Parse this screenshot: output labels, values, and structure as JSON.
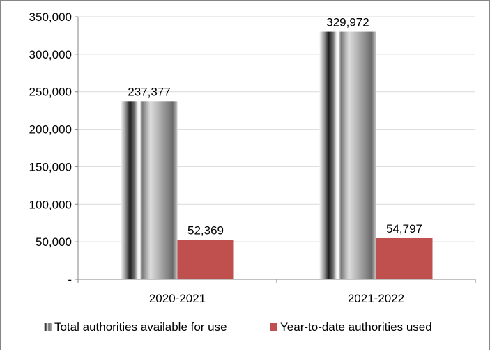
{
  "chart_data": {
    "type": "bar",
    "categories": [
      "2020-2021",
      "2021-2022"
    ],
    "series": [
      {
        "name": "Total authorities available for use",
        "values": [
          237377,
          329972
        ],
        "value_labels": [
          "237,377",
          "329,972"
        ],
        "color": "#8c8c8c",
        "fill_style": "cylinder-gradient"
      },
      {
        "name": "Year-to-date authorities used",
        "values": [
          52369,
          54797
        ],
        "value_labels": [
          "52,369",
          "54,797"
        ],
        "color": "#c0504d",
        "fill_style": "solid"
      }
    ],
    "ylim": [
      0,
      350000
    ],
    "yticks": [
      0,
      50000,
      100000,
      150000,
      200000,
      250000,
      300000,
      350000
    ],
    "ytick_labels": [
      "-",
      "50,000",
      "100,000",
      "150,000",
      "200,000",
      "250,000",
      "300,000",
      "350,000"
    ],
    "grid": true,
    "grid_color": "#d9d9d9",
    "legend_position": "bottom"
  }
}
